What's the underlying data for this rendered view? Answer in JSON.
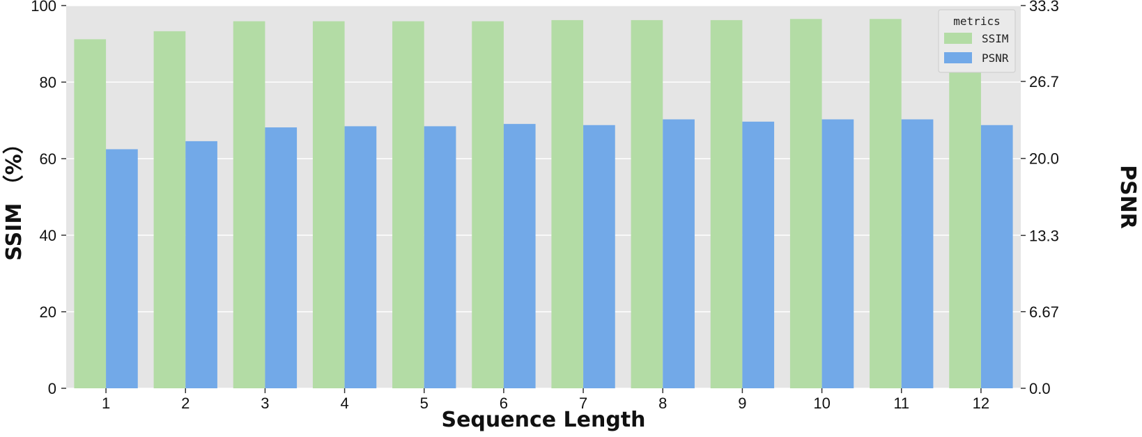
{
  "chart_data": {
    "type": "bar",
    "categories": [
      "1",
      "2",
      "3",
      "4",
      "5",
      "6",
      "7",
      "8",
      "9",
      "10",
      "11",
      "12"
    ],
    "series": [
      {
        "name": "SSIM",
        "axis": "left",
        "color": "#b3dca5",
        "values": [
          91.2,
          93.3,
          95.9,
          95.9,
          95.9,
          95.9,
          96.2,
          96.2,
          96.2,
          96.5,
          96.5,
          96.2
        ]
      },
      {
        "name": "PSNR",
        "axis": "right",
        "color": "#72a9e8",
        "values": [
          20.8,
          21.5,
          22.7,
          22.8,
          22.8,
          23.0,
          22.9,
          23.4,
          23.2,
          23.4,
          23.4,
          22.9
        ]
      }
    ],
    "xlabel": "Sequence Length",
    "ylabel": "SSIM （%）",
    "y2label": "PSNR",
    "ylim": [
      0,
      100
    ],
    "y2lim": [
      0,
      33.3
    ],
    "yticks": [
      "0",
      "20",
      "40",
      "60",
      "80",
      "100"
    ],
    "y2ticks": [
      "0.0",
      "6.67",
      "13.3",
      "20.0",
      "26.7",
      "33.3"
    ],
    "legend": {
      "title": "metrics",
      "position": "top-right"
    },
    "grid": true,
    "background": "#e5e5e5"
  }
}
